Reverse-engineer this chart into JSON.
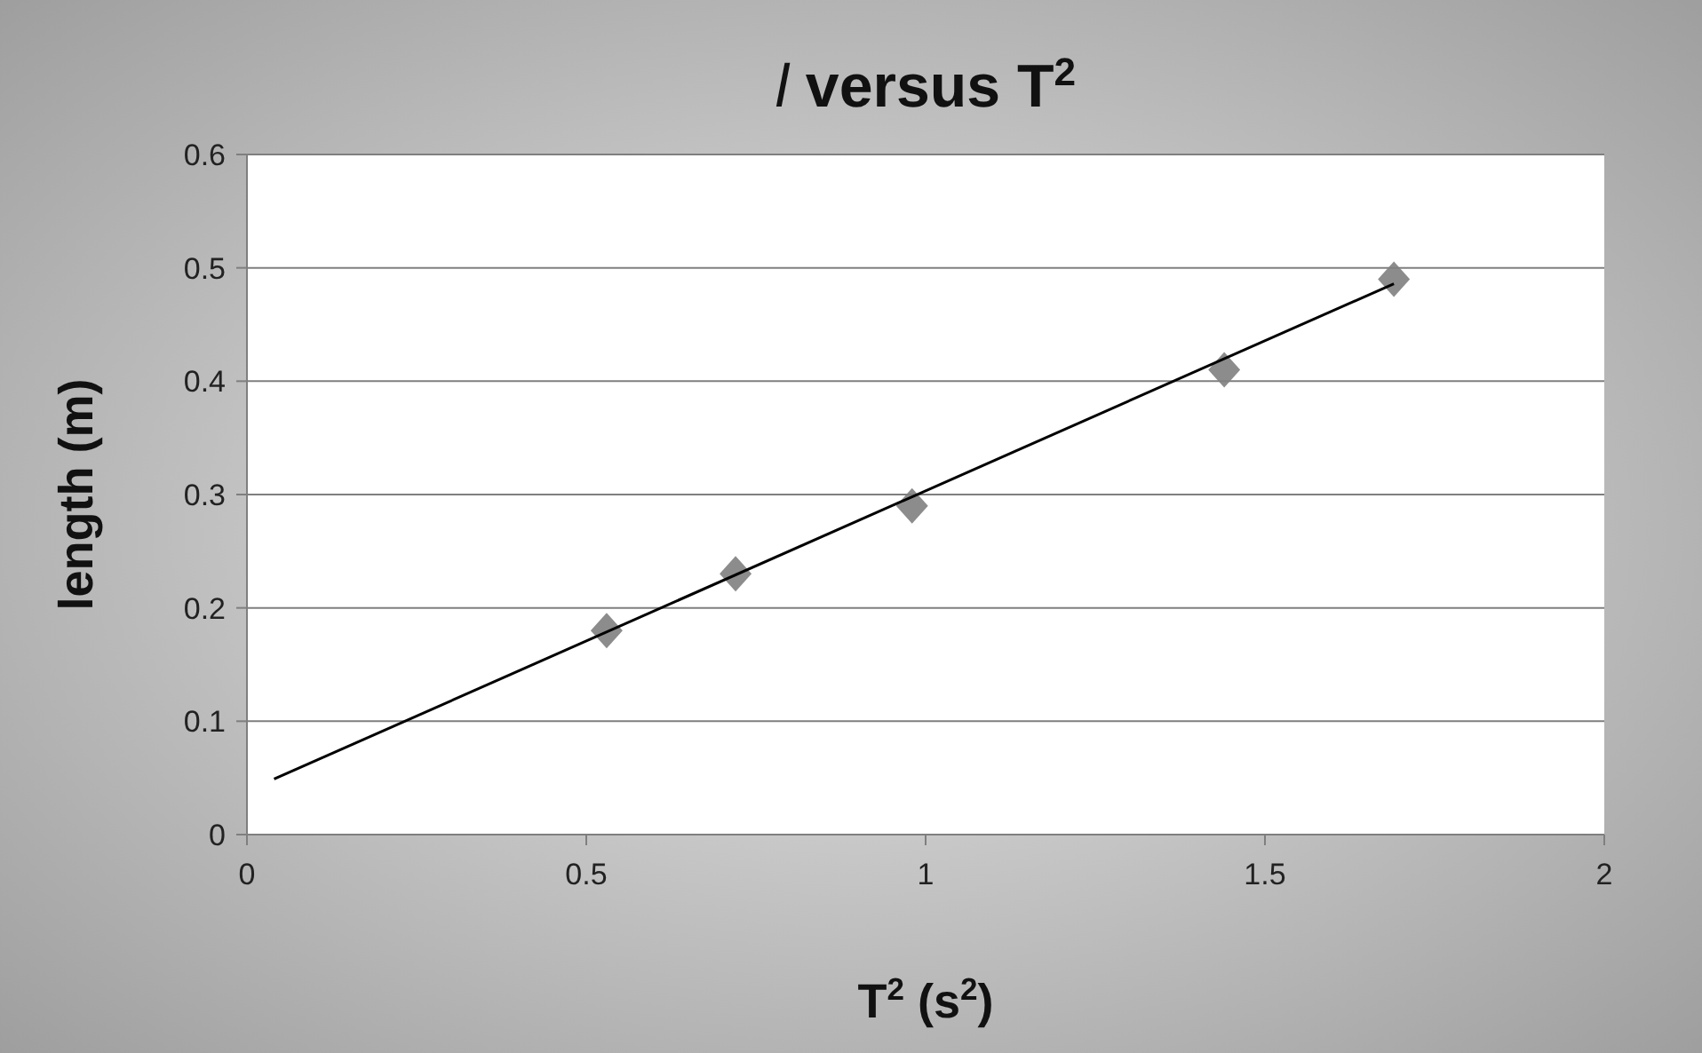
{
  "chart_data": {
    "type": "scatter",
    "title": "l versus T$^{2}$",
    "xlabel": "T$^{2}$ (s$^{2}$)",
    "ylabel": "length (m)",
    "xlim": [
      0,
      2
    ],
    "xticks": [
      0,
      0.5,
      1,
      1.5,
      2
    ],
    "ylim": [
      0,
      0.6
    ],
    "yticks": [
      0,
      0.1,
      0.2,
      0.3,
      0.4,
      0.5,
      0.6
    ],
    "grid": "y",
    "series": [
      {
        "color": "#7f7f7f",
        "marker": "diamond",
        "x": [
          0.53,
          0.72,
          0.98,
          1.44,
          1.69
        ],
        "values": [
          0.18,
          0.23,
          0.29,
          0.41,
          0.49
        ]
      },
      {
        "type": "line",
        "color": "#000000",
        "marker": "none",
        "line_style": "solid",
        "x": [
          0.04,
          1.69
        ],
        "values": [
          0.049,
          0.486
        ]
      }
    ]
  }
}
